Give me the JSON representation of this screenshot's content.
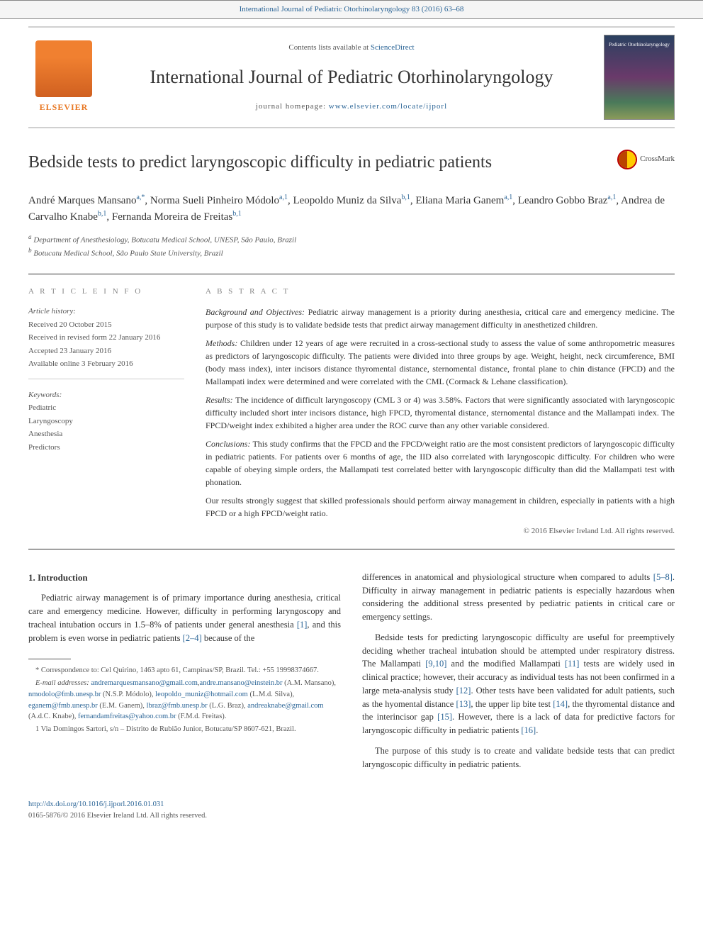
{
  "running_head": "International Journal of Pediatric Otorhinolaryngology 83 (2016) 63–68",
  "masthead": {
    "elsevier": "ELSEVIER",
    "contents_line_a": "Contents lists available at ",
    "contents_line_b": "ScienceDirect",
    "journal_name": "International Journal of Pediatric Otorhinolaryngology",
    "homepage_prefix": "journal homepage: ",
    "homepage_url": "www.elsevier.com/locate/ijporl",
    "cover_label": "Pediatric Otorhinolaryngology"
  },
  "crossmark": "CrossMark",
  "article": {
    "title": "Bedside tests to predict laryngoscopic difficulty in pediatric patients",
    "authors_html": "André Marques Mansano<span class='sup'>a,*</span>, Norma Sueli Pinheiro Módolo<span class='sup'>a,1</span>, Leopoldo Muniz da Silva<span class='sup'>b,1</span>, Eliana Maria Ganem<span class='sup'>a,1</span>, Leandro Gobbo Braz<span class='sup'>a,1</span>, Andrea de Carvalho Knabe<span class='sup'>b,1</span>, Fernanda Moreira de Freitas<span class='sup'>b,1</span>",
    "affiliations": [
      "a Department of Anesthesiology, Botucatu Medical School, UNESP, São Paulo, Brazil",
      "b Botucatu Medical School, São Paulo State University, Brazil"
    ]
  },
  "article_info": {
    "section_label": "A R T I C L E   I N F O",
    "history_label": "Article history:",
    "history": [
      "Received 20 October 2015",
      "Received in revised form 22 January 2016",
      "Accepted 23 January 2016",
      "Available online 3 February 2016"
    ],
    "keywords_label": "Keywords:",
    "keywords": [
      "Pediatric",
      "Laryngoscopy",
      "Anesthesia",
      "Predictors"
    ]
  },
  "abstract": {
    "section_label": "A B S T R A C T",
    "paragraphs": [
      {
        "label": "Background and Objectives:",
        "text": "Pediatric airway management is a priority during anesthesia, critical care and emergency medicine. The purpose of this study is to validate bedside tests that predict airway management difficulty in anesthetized children."
      },
      {
        "label": "Methods:",
        "text": "Children under 12 years of age were recruited in a cross-sectional study to assess the value of some anthropometric measures as predictors of laryngoscopic difficulty. The patients were divided into three groups by age. Weight, height, neck circumference, BMI (body mass index), inter incisors distance thyromental distance, sternomental distance, frontal plane to chin distance (FPCD) and the Mallampati index were determined and were correlated with the CML (Cormack & Lehane classification)."
      },
      {
        "label": "Results:",
        "text": "The incidence of difficult laryngoscopy (CML 3 or 4) was 3.58%. Factors that were significantly associated with laryngoscopic difficulty included short inter incisors distance, high FPCD, thyromental distance, sternomental distance and the Mallampati index. The FPCD/weight index exhibited a higher area under the ROC curve than any other variable considered."
      },
      {
        "label": "Conclusions:",
        "text": "This study confirms that the FPCD and the FPCD/weight ratio are the most consistent predictors of laryngoscopic difficulty in pediatric patients. For patients over 6 months of age, the IID also correlated with laryngoscopic difficulty. For children who were capable of obeying simple orders, the Mallampati test correlated better with laryngoscopic difficulty than did the Mallampati test with phonation."
      },
      {
        "label": "",
        "text": "Our results strongly suggest that skilled professionals should perform airway management in children, especially in patients with a high FPCD or a high FPCD/weight ratio."
      }
    ],
    "copyright": "© 2016 Elsevier Ireland Ltd. All rights reserved."
  },
  "body": {
    "intro_heading": "1. Introduction",
    "left_paras": [
      "Pediatric airway management is of primary importance during anesthesia, critical care and emergency medicine. However, difficulty in performing laryngoscopy and tracheal intubation occurs in 1.5–8% of patients under general anesthesia <span class='ref-link'>[1]</span>, and this problem is even worse in pediatric patients <span class='ref-link'>[2–4]</span> because of the"
    ],
    "right_paras": [
      "differences in anatomical and physiological structure when compared to adults <span class='ref-link'>[5–8]</span>. Difficulty in airway management in pediatric patients is especially hazardous when considering the additional stress presented by pediatric patients in critical care or emergency settings.",
      "Bedside tests for predicting laryngoscopic difficulty are useful for preemptively deciding whether tracheal intubation should be attempted under respiratory distress. The Mallampati <span class='ref-link'>[9,10]</span> and the modified Mallampati <span class='ref-link'>[11]</span> tests are widely used in clinical practice; however, their accuracy as individual tests has not been confirmed in a large meta-analysis study <span class='ref-link'>[12]</span>. Other tests have been validated for adult patients, such as the hyomental distance <span class='ref-link'>[13]</span>, the upper lip bite test <span class='ref-link'>[14]</span>, the thyromental distance and the interincisor gap <span class='ref-link'>[15]</span>. However, there is a lack of data for predictive factors for laryngoscopic difficulty in pediatric patients <span class='ref-link'>[16]</span>.",
      "The purpose of this study is to create and validate bedside tests that can predict laryngoscopic difficulty in pediatric patients."
    ]
  },
  "footnotes": {
    "corr": "* Correspondence to: Cel Quirino, 1463 apto 61, Campinas/SP, Brazil. Tel.: +55 19998374667.",
    "emails_label": "E-mail addresses: ",
    "emails": [
      {
        "addr": "andremarquesmansano@gmail.com",
        "tail": ","
      },
      {
        "addr": "andre.mansano@einstein.br",
        "tail": " (A.M. Mansano), "
      },
      {
        "addr": "nmodolo@fmb.unesp.br",
        "tail": " (N.S.P. Módolo), "
      },
      {
        "addr": "leopoldo_muniz@hotmail.com",
        "tail": " (L.M.d. Silva), "
      },
      {
        "addr": "eganem@fmb.unesp.br",
        "tail": " (E.M. Ganem), "
      },
      {
        "addr": "lbraz@fmb.unesp.br",
        "tail": " (L.G. Braz), "
      },
      {
        "addr": "andreaknabe@gmail.com",
        "tail": " (A.d.C. Knabe), "
      },
      {
        "addr": "fernandamfreitas@yahoo.com.br",
        "tail": " (F.M.d. Freitas)."
      }
    ],
    "note1": "1 Via Domingos Sartori, s/n – Distrito de Rubião Junior, Botucatu/SP 8607-621, Brazil."
  },
  "doi": {
    "url": "http://dx.doi.org/10.1016/j.ijporl.2016.01.031",
    "issn_line": "0165-5876/© 2016 Elsevier Ireland Ltd. All rights reserved."
  },
  "colors": {
    "link": "#2a6496",
    "elsevier_orange": "#e87722",
    "text": "#333333",
    "muted": "#555555"
  }
}
